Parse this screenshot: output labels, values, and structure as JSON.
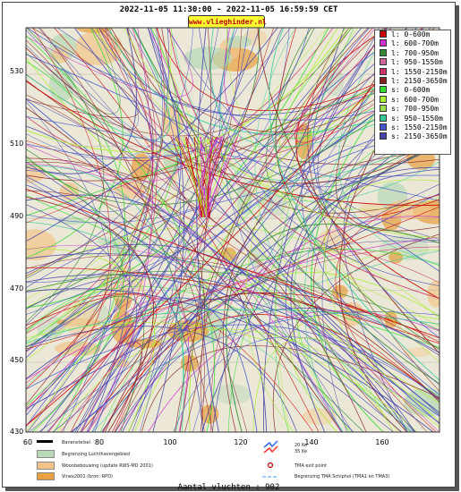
{
  "header": {
    "time_range": "2022-11-05 11:30:00 - 2022-11-05 16:59:59 CET",
    "site_badge": "www.vlieghinder.nl"
  },
  "axes": {
    "y_ticks": [
      "530",
      "510",
      "490",
      "470",
      "450",
      "430"
    ],
    "x_ticks": [
      "60",
      "80",
      "100",
      "120",
      "140",
      "160"
    ]
  },
  "legend": {
    "items": [
      {
        "label": "l: 0-600m",
        "color": "#cc0000"
      },
      {
        "label": "l: 600-700m",
        "color": "#cc33cc"
      },
      {
        "label": "l: 700-950m",
        "color": "#338833"
      },
      {
        "label": "l: 950-1550m",
        "color": "#cc6699"
      },
      {
        "label": "l: 1550-2150m",
        "color": "#cc3366"
      },
      {
        "label": "l: 2150-3650m",
        "color": "#882222"
      },
      {
        "label": "s: 0-600m",
        "color": "#33dd33"
      },
      {
        "label": "s: 600-700m",
        "color": "#aaee33"
      },
      {
        "label": "s: 700-950m",
        "color": "#99dd55"
      },
      {
        "label": "s: 950-1550m",
        "color": "#33cc99"
      },
      {
        "label": "s: 1550-2150m",
        "color": "#4455cc"
      },
      {
        "label": "s: 2150-3650m",
        "color": "#4444aa"
      }
    ]
  },
  "map_legend": {
    "items": [
      {
        "label": "Banenstelsel",
        "color": "#000000"
      },
      {
        "label": "Begrenzing Luchthavengebied",
        "color": "#b8d8b8"
      },
      {
        "label": "Woonbebouwing (update RWS-MD 2001)",
        "color": "#f2c48a"
      },
      {
        "label": "Vinex2001 (bron: RPD)",
        "color": "#e8a040"
      }
    ],
    "right_items": [
      {
        "label": "20 Ke",
        "color": "#3366ff"
      },
      {
        "label": "35 Ke",
        "color": "#ff3333"
      },
      {
        "label": "TMA exit point",
        "color": "#cc0000"
      },
      {
        "label": "Begrenzing TMA Schiphol  (TMA1 en TMA3)",
        "color": "#66aaff"
      }
    ]
  },
  "footer": {
    "count_text": "Aantal vluchten : 902"
  }
}
